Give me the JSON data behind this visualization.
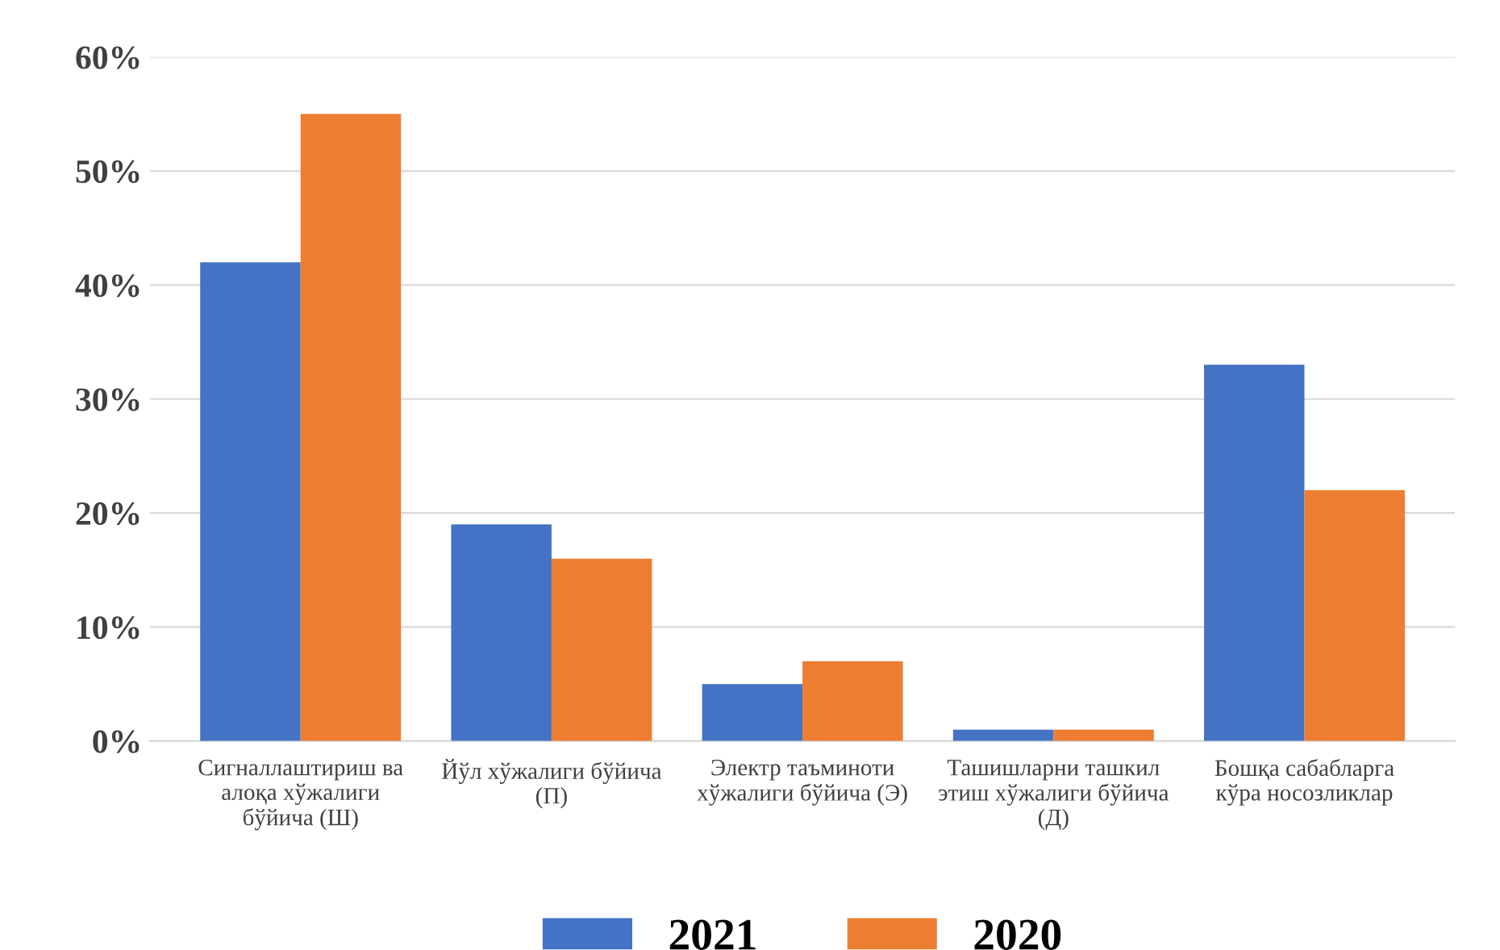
{
  "chart_data": {
    "type": "bar",
    "categories": [
      "Сигналлаштириш ва алоқа хўжалиги бўйича (Ш)",
      "Йўл хўжалиги бўйича (П)",
      "Электр таъминоти хўжалиги бўйича (Э)",
      "Ташишларни ташкил этиш хўжалиги бўйича (Д)",
      "Бошқа сабабларга кўра носозликлар"
    ],
    "series": [
      {
        "name": "2021",
        "color": "#4472c4",
        "values": [
          42,
          19,
          5,
          1,
          33
        ]
      },
      {
        "name": "2020",
        "color": "#ed7d31",
        "values": [
          55,
          16,
          7,
          1,
          22
        ]
      }
    ],
    "ylim": [
      0,
      60
    ],
    "yticks": [
      {
        "value": 0,
        "label": "0%"
      },
      {
        "value": 10,
        "label": "10%"
      },
      {
        "value": 20,
        "label": "20%"
      },
      {
        "value": 30,
        "label": "30%"
      },
      {
        "value": 40,
        "label": "40%"
      },
      {
        "value": 50,
        "label": "50%"
      },
      {
        "value": 60,
        "label": "60%"
      }
    ],
    "grid": "y",
    "legend": "bottom"
  }
}
